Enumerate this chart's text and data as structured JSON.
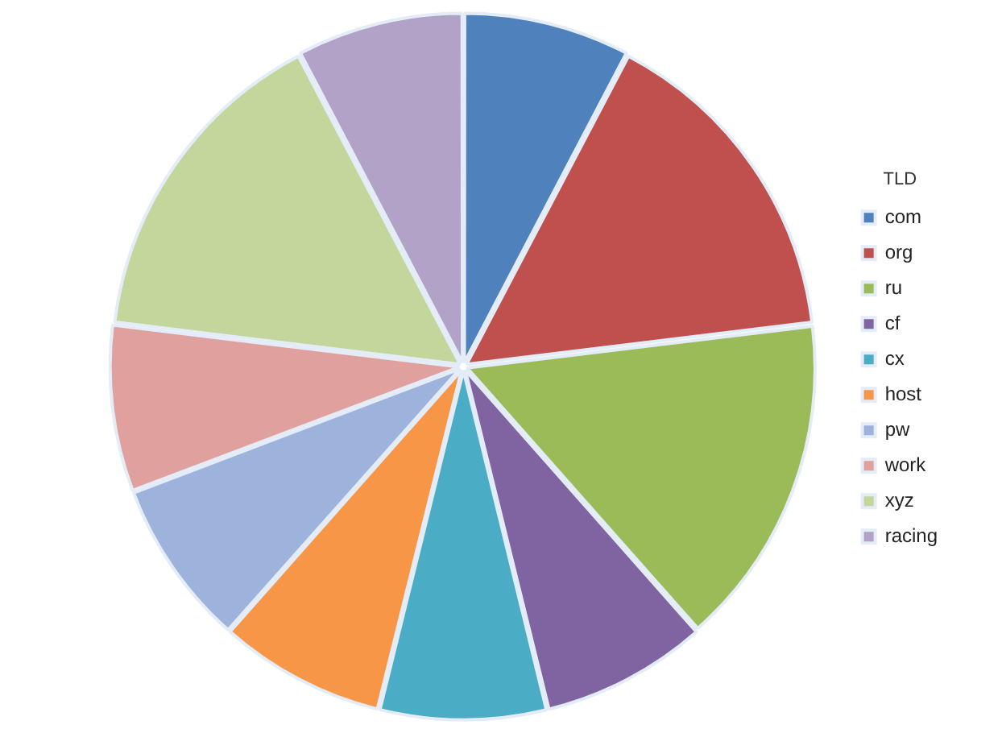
{
  "chart_data": {
    "type": "pie",
    "legend_title": "TLD",
    "legend": "right",
    "categories": [
      "com",
      "org",
      "ru",
      "cf",
      "cx",
      "host",
      "pw",
      "work",
      "xyz",
      "racing"
    ],
    "values": [
      7.69,
      15.39,
      15.39,
      7.69,
      7.69,
      7.69,
      7.69,
      7.69,
      15.38,
      7.69
    ],
    "colors": [
      "#4f81bd",
      "#c0504d",
      "#9bbb59",
      "#8064a2",
      "#4bacc6",
      "#f79646",
      "#9db3dc",
      "#e0a09e",
      "#c3d69b",
      "#b3a2c7"
    ]
  }
}
